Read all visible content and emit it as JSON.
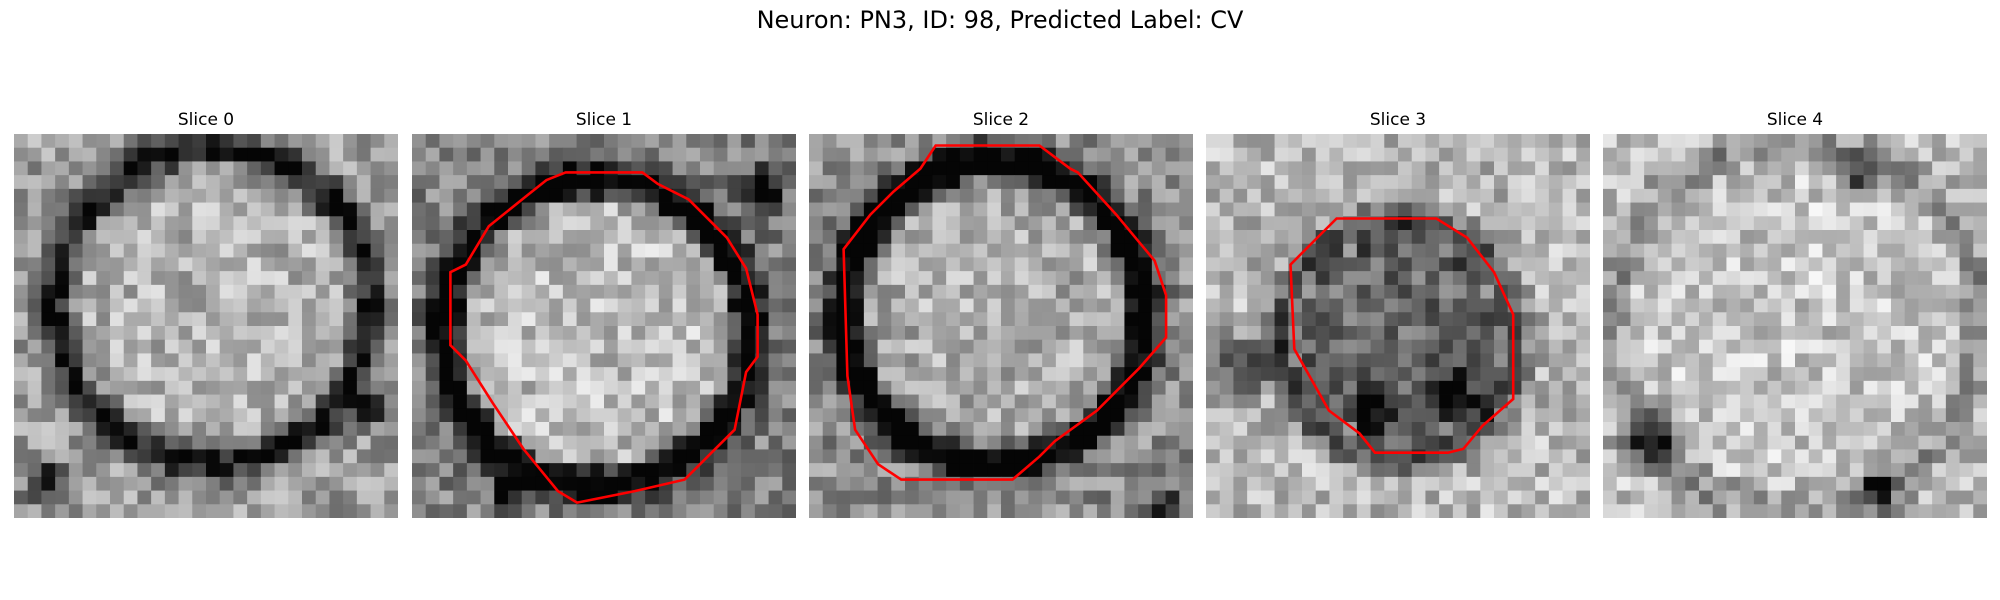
{
  "figure": {
    "title": "Neuron: PN3, ID: 98, Predicted Label: CV"
  },
  "panels": [
    {
      "title": "Slice 0",
      "has_contour": false
    },
    {
      "title": "Slice 1",
      "has_contour": true
    },
    {
      "title": "Slice 2",
      "has_contour": true
    },
    {
      "title": "Slice 3",
      "has_contour": true
    },
    {
      "title": "Slice 4",
      "has_contour": false
    }
  ],
  "style": {
    "contour_color": "#ff0000",
    "colormap": "grayscale"
  }
}
